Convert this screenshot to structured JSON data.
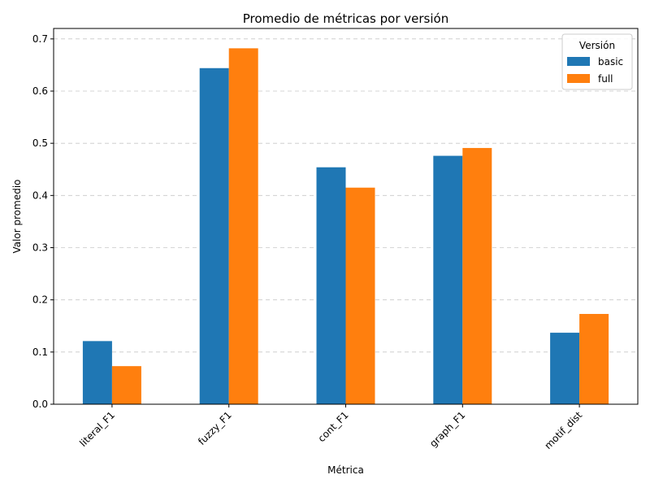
{
  "chart_data": {
    "type": "bar",
    "title": "Promedio de métricas por versión",
    "xlabel": "Métrica",
    "ylabel": "Valor promedio",
    "categories": [
      "literal_F1",
      "fuzzy_F1",
      "cont_F1",
      "graph_F1",
      "motif_dist"
    ],
    "series": [
      {
        "name": "basic",
        "color": "#1f77b4",
        "values": [
          0.121,
          0.644,
          0.454,
          0.476,
          0.137
        ]
      },
      {
        "name": "full",
        "color": "#ff7f0e",
        "values": [
          0.073,
          0.682,
          0.415,
          0.491,
          0.173
        ]
      }
    ],
    "ylim": [
      0,
      0.72
    ],
    "yticks": [
      "0.0",
      "0.1",
      "0.2",
      "0.3",
      "0.4",
      "0.5",
      "0.6",
      "0.7"
    ],
    "grid": "y-dashed",
    "legend": {
      "title": "Versión",
      "placement": "top-right"
    }
  }
}
